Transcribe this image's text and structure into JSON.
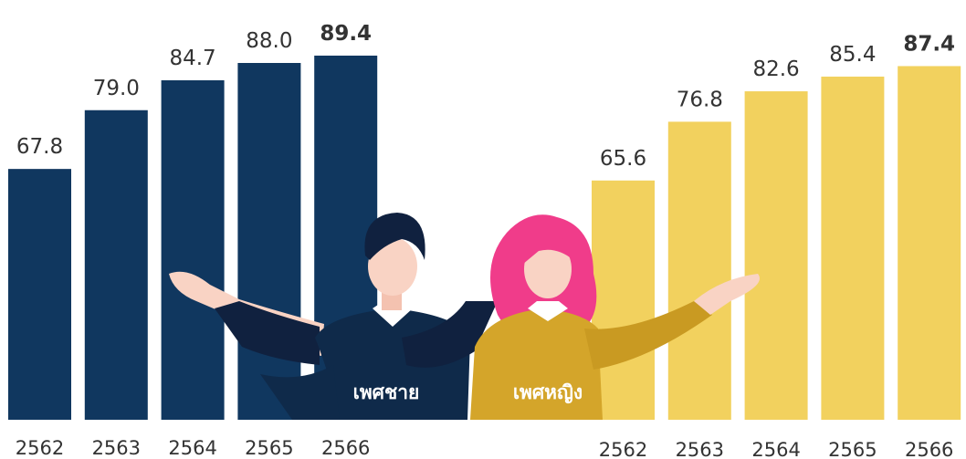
{
  "chart_data": [
    {
      "type": "bar",
      "name": "เพศชาย",
      "categories": [
        "2562",
        "2563",
        "2564",
        "2565",
        "2566"
      ],
      "values": [
        67.8,
        79.0,
        84.7,
        88.0,
        89.4
      ],
      "value_labels": [
        "67.8",
        "79.0",
        "84.7",
        "88.0",
        "89.4"
      ],
      "color": "#10375f",
      "ylim": [
        20,
        100
      ]
    },
    {
      "type": "bar",
      "name": "เพศหญิง",
      "categories": [
        "2562",
        "2563",
        "2564",
        "2565",
        "2566"
      ],
      "values": [
        65.6,
        76.8,
        82.6,
        85.4,
        87.4
      ],
      "value_labels": [
        "65.6",
        "76.8",
        "82.6",
        "85.4",
        "87.4"
      ],
      "color": "#f2d15e",
      "ylim": [
        20,
        100
      ]
    }
  ]
}
